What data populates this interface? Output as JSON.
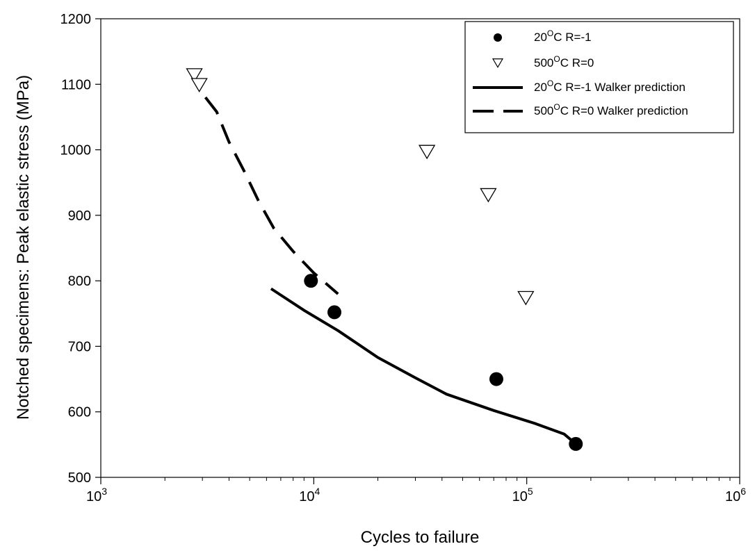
{
  "chart_data": {
    "type": "scatter",
    "title": "",
    "xlabel": "Cycles to failure",
    "ylabel": "Notched specimens: Peak elastic stress (MPa)",
    "xscale": "log",
    "xlim": [
      1000,
      1000000
    ],
    "ylim": [
      500,
      1200
    ],
    "grid": false,
    "legend_position": "top-right",
    "y_ticks": [
      "500",
      "600",
      "700",
      "800",
      "900",
      "1000",
      "1100",
      "1200"
    ],
    "x_ticks": [
      {
        "base": "10",
        "exp": "3"
      },
      {
        "base": "10",
        "exp": "4"
      },
      {
        "base": "10",
        "exp": "5"
      },
      {
        "base": "10",
        "exp": "6"
      }
    ],
    "series": [
      {
        "name": {
          "pre": "20",
          "sup": "O",
          "post": "C R=-1"
        },
        "style": "filled-circle",
        "color": "#000000",
        "points": [
          [
            9700,
            800
          ],
          [
            12500,
            752
          ],
          [
            72000,
            650
          ],
          [
            170000,
            551
          ]
        ]
      },
      {
        "name": {
          "pre": "500",
          "sup": "O",
          "post": "C R=0"
        },
        "style": "open-triangle-down",
        "color": "#000000",
        "points": [
          [
            2750,
            1115
          ],
          [
            2900,
            1100
          ],
          [
            34000,
            998
          ],
          [
            66000,
            932
          ],
          [
            99000,
            775
          ]
        ]
      },
      {
        "name": {
          "pre": "20",
          "sup": "O",
          "post": "C R=-1 Walker prediction"
        },
        "style": "solid-line",
        "color": "#000000",
        "points": [
          [
            6300,
            788
          ],
          [
            9000,
            755
          ],
          [
            13000,
            724
          ],
          [
            20000,
            683
          ],
          [
            30000,
            652
          ],
          [
            42000,
            627
          ],
          [
            70000,
            602
          ],
          [
            110000,
            582
          ],
          [
            150000,
            566
          ],
          [
            170000,
            551
          ]
        ]
      },
      {
        "name": {
          "pre": "500",
          "sup": "O",
          "post": "C R=0 Walker prediction"
        },
        "style": "dashed-line",
        "color": "#000000",
        "points": [
          [
            3100,
            1080
          ],
          [
            3500,
            1058
          ],
          [
            4000,
            1012
          ],
          [
            4700,
            968
          ],
          [
            5500,
            922
          ],
          [
            6500,
            880
          ],
          [
            8000,
            845
          ],
          [
            10000,
            812
          ],
          [
            13000,
            780
          ]
        ]
      }
    ]
  }
}
